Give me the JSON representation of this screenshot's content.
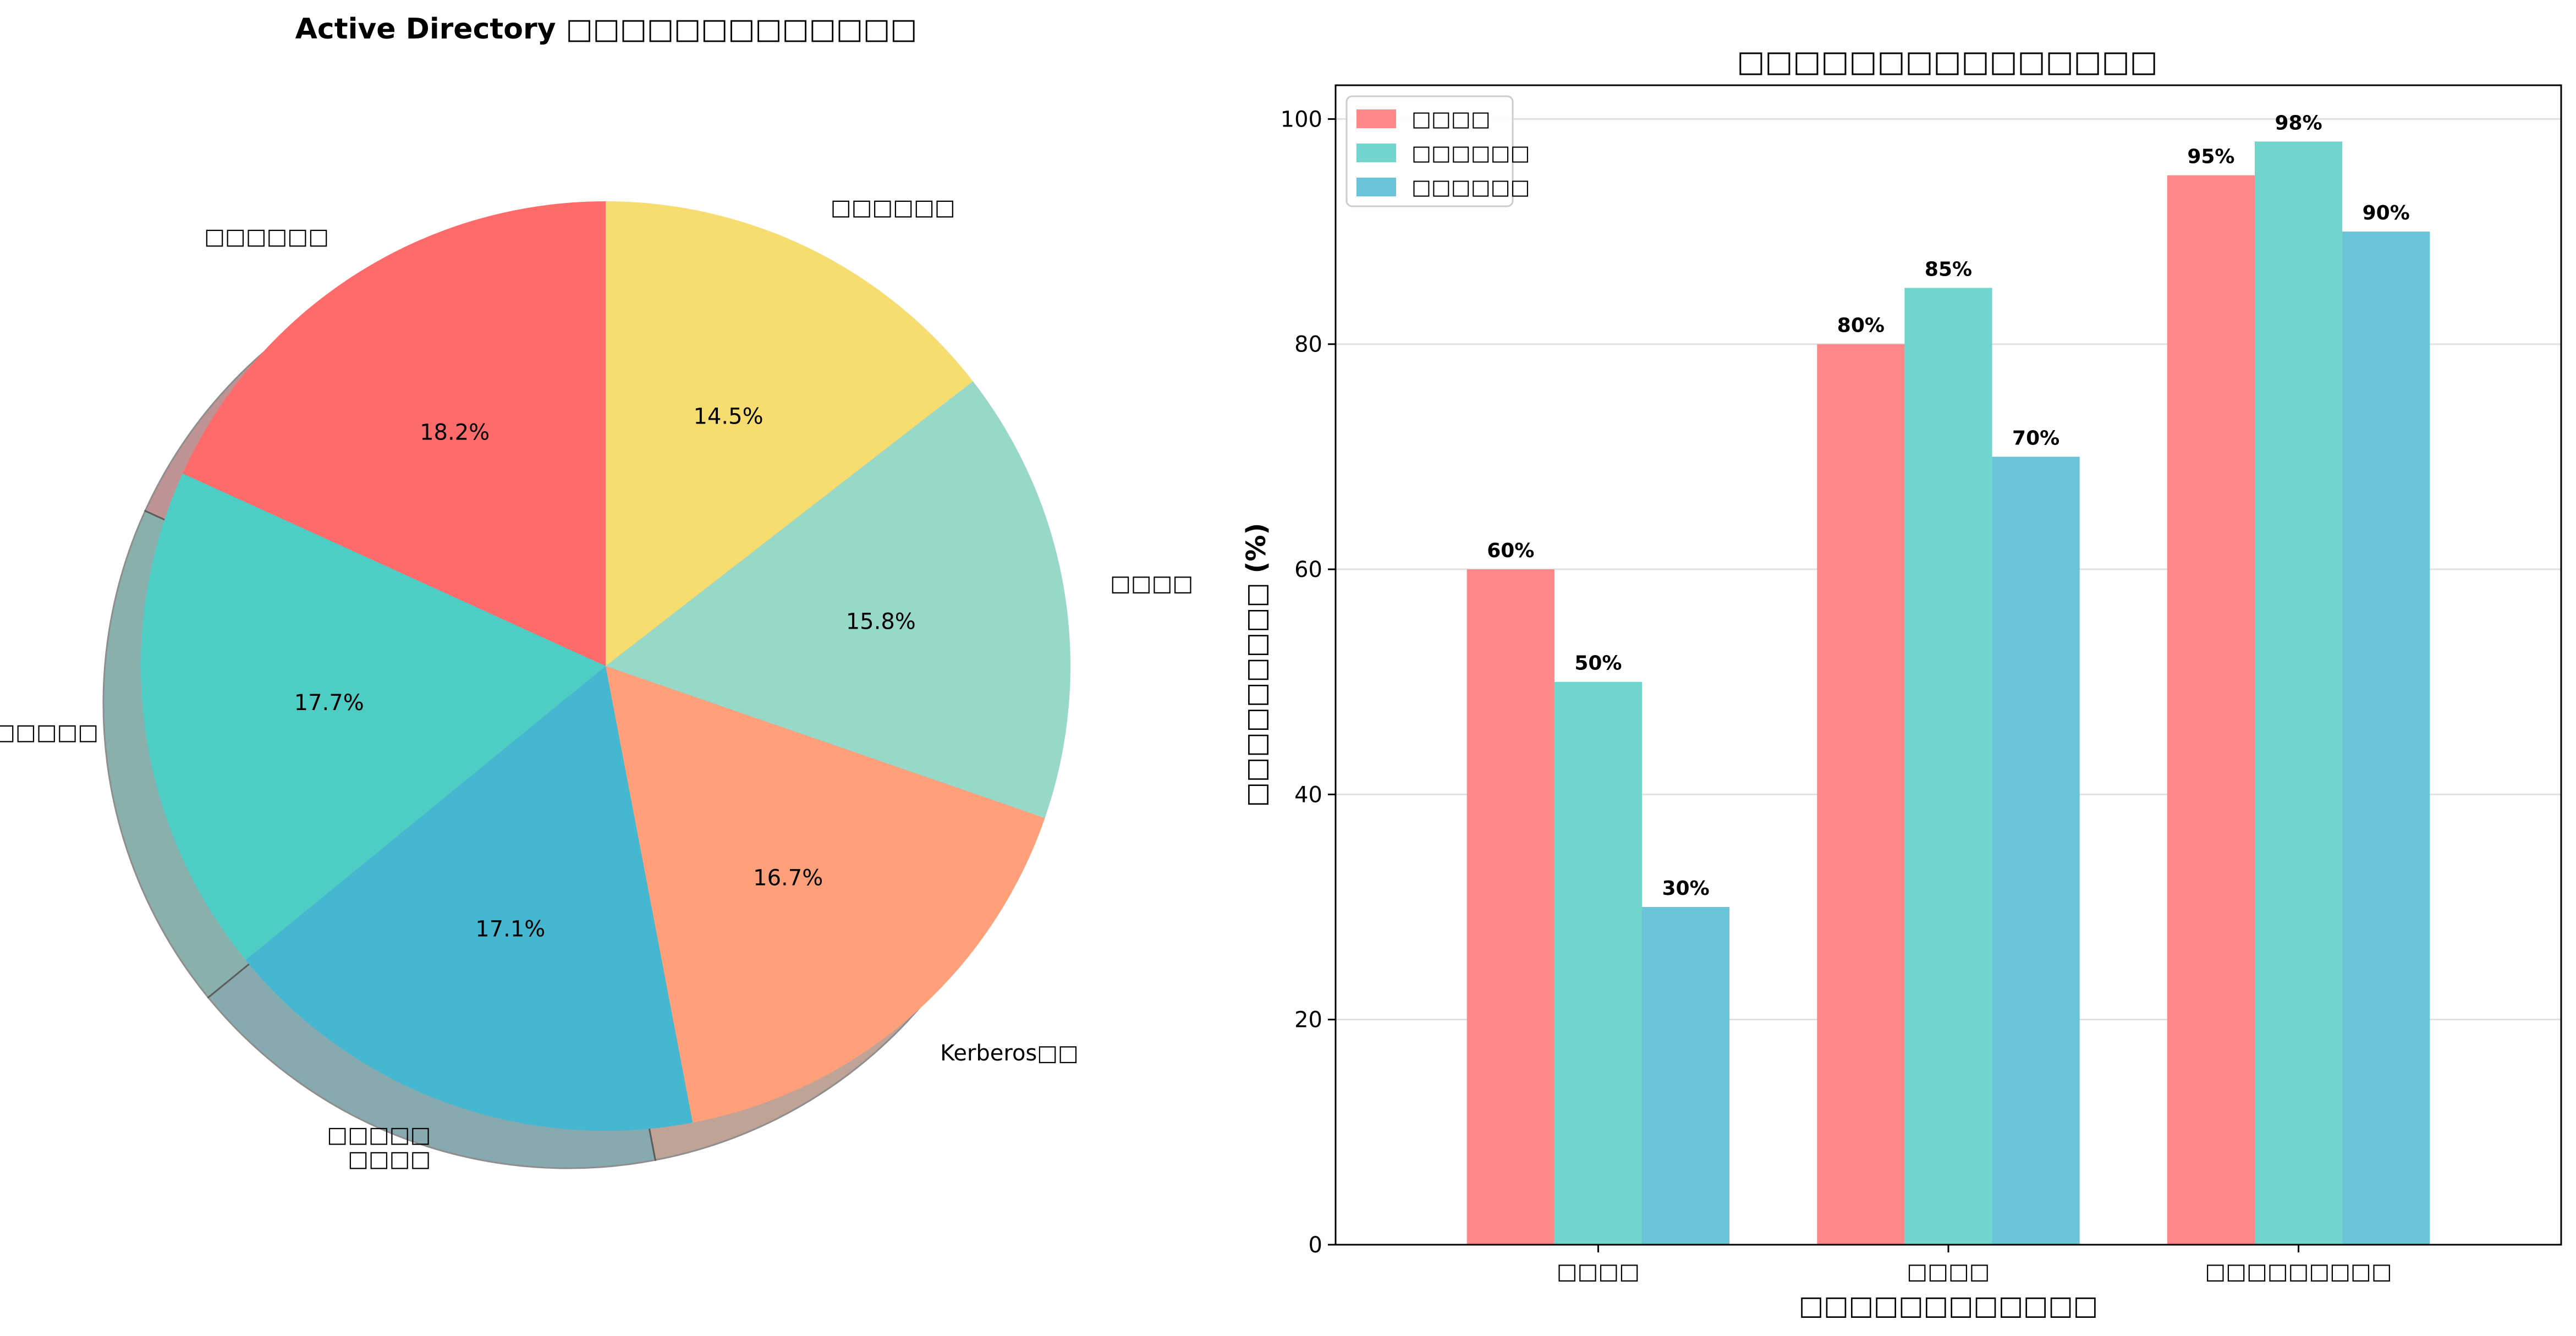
{
  "chart_data": [
    {
      "type": "pie",
      "title": "Active Directory □□□□□□□□□□□□□",
      "labels": [
        "□□□□□□",
        "□□□□□□",
        "□□□□□\n□□□□",
        "Kerberos□□",
        "□□□□",
        "□□□□□□"
      ],
      "values": [
        18.2,
        17.7,
        17.1,
        16.7,
        15.8,
        14.5
      ],
      "value_labels": [
        "18.2%",
        "17.7%",
        "17.1%",
        "16.7%",
        "15.8%",
        "14.5%"
      ],
      "colors": [
        "#FF6B6B",
        "#4ECDC4",
        "#45B7D1",
        "#FFA07A",
        "#98D8C8",
        "#F7DC6F"
      ],
      "start_angle_deg": 90,
      "direction": "counterclockwise",
      "shadow": true
    },
    {
      "type": "bar",
      "title": "□□□□□□□□□□□□□□□",
      "xlabel": "□□□□□□□□□□□□",
      "ylabel": "□□□□□□□□□ (%)",
      "categories": [
        "□□□□",
        "□□□□",
        "□□□□□□□□□"
      ],
      "series": [
        {
          "name": "□□□□",
          "values": [
            60,
            80,
            95
          ],
          "color": "#FF8787"
        },
        {
          "name": "□□□□□□",
          "values": [
            50,
            85,
            98
          ],
          "color": "#72D5CD"
        },
        {
          "name": "□□□□□□",
          "values": [
            30,
            70,
            90
          ],
          "color": "#69C3D9"
        }
      ],
      "value_labels": [
        [
          "60%",
          "80%",
          "95%"
        ],
        [
          "50%",
          "85%",
          "98%"
        ],
        [
          "30%",
          "70%",
          "90%"
        ]
      ],
      "ylim": [
        0,
        103
      ],
      "yticks": [
        0,
        20,
        40,
        60,
        80,
        100
      ],
      "grid": "y",
      "legend_position": "top-left"
    }
  ]
}
